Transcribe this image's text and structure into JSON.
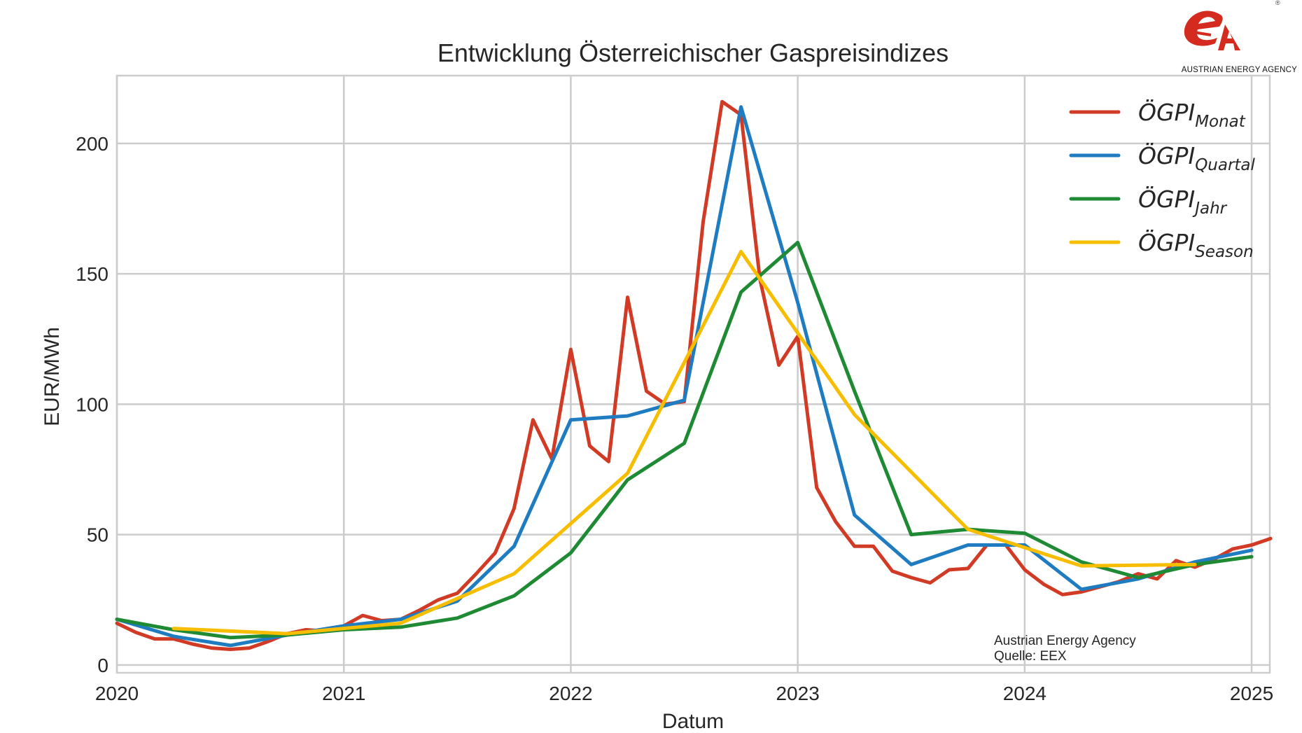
{
  "chart_data": {
    "type": "line",
    "title": "Entwicklung Österreichischer Gaspreisindizes",
    "xlabel": "Datum",
    "ylabel": "EUR/MWh",
    "xlim": [
      2020.0,
      2025.08
    ],
    "ylim": [
      -3,
      226
    ],
    "x_ticks": [
      2020,
      2021,
      2022,
      2023,
      2024,
      2025
    ],
    "x_tick_labels": [
      "2020",
      "2021",
      "2022",
      "2023",
      "2024",
      "2025"
    ],
    "y_ticks": [
      0,
      50,
      100,
      150,
      200
    ],
    "y_tick_labels": [
      "0",
      "50",
      "100",
      "150",
      "200"
    ],
    "grid": true,
    "legend_position": "top-right",
    "series": [
      {
        "name_main": "ÖGPI",
        "name_sub": "Monat",
        "color": "#d13b26",
        "x": [
          "2020-01",
          "2020-02",
          "2020-03",
          "2020-04",
          "2020-05",
          "2020-06",
          "2020-07",
          "2020-08",
          "2020-09",
          "2020-10",
          "2020-11",
          "2020-12",
          "2021-01",
          "2021-02",
          "2021-03",
          "2021-04",
          "2021-05",
          "2021-06",
          "2021-07",
          "2021-08",
          "2021-09",
          "2021-10",
          "2021-11",
          "2021-12",
          "2022-01",
          "2022-02",
          "2022-03",
          "2022-04",
          "2022-05",
          "2022-06",
          "2022-07",
          "2022-08",
          "2022-09",
          "2022-10",
          "2022-11",
          "2022-12",
          "2023-01",
          "2023-02",
          "2023-03",
          "2023-04",
          "2023-05",
          "2023-06",
          "2023-07",
          "2023-08",
          "2023-09",
          "2023-10",
          "2023-11",
          "2023-12",
          "2024-01",
          "2024-02",
          "2024-03",
          "2024-04",
          "2024-05",
          "2024-06",
          "2024-07",
          "2024-08",
          "2024-09",
          "2024-10",
          "2024-11",
          "2024-12",
          "2025-01",
          "2025-02"
        ],
        "y": [
          16,
          12.5,
          10,
          10,
          8,
          6.5,
          6,
          6.5,
          9,
          12,
          13.5,
          13,
          15,
          19,
          17,
          17.5,
          21,
          25,
          27.5,
          35,
          43,
          60,
          94,
          79,
          121,
          84,
          78,
          141,
          105,
          100,
          101,
          170,
          216,
          211,
          148,
          115,
          126,
          68,
          55,
          45.5,
          45.5,
          36,
          33.5,
          31.5,
          36.5,
          37,
          46,
          46,
          36.5,
          31,
          27,
          28,
          30,
          32,
          35,
          33,
          40,
          37.5,
          40.5,
          44.5,
          46,
          48.5
        ]
      },
      {
        "name_main": "ÖGPI",
        "name_sub": "Quartal",
        "color": "#1f7cc1",
        "x": [
          "2020-01",
          "2020-04",
          "2020-07",
          "2020-10",
          "2021-01",
          "2021-04",
          "2021-07",
          "2021-10",
          "2022-01",
          "2022-04",
          "2022-07",
          "2022-10",
          "2023-01",
          "2023-04",
          "2023-07",
          "2023-10",
          "2024-01",
          "2024-04",
          "2024-07",
          "2024-10",
          "2025-01"
        ],
        "y": [
          17.5,
          11,
          7.5,
          11.5,
          15,
          17.5,
          24.5,
          45.5,
          94,
          95.5,
          101.5,
          214,
          139,
          57.5,
          38.5,
          46,
          46,
          29,
          33,
          39.5,
          44
        ]
      },
      {
        "name_main": "ÖGPI",
        "name_sub": "Jahr",
        "color": "#1f8a34",
        "x": [
          "2020-01",
          "2020-04",
          "2020-07",
          "2020-10",
          "2021-01",
          "2021-04",
          "2021-07",
          "2021-10",
          "2022-01",
          "2022-04",
          "2022-07",
          "2022-10",
          "2023-01",
          "2023-04",
          "2023-07",
          "2023-10",
          "2024-01",
          "2024-04",
          "2024-07",
          "2024-10",
          "2025-01"
        ],
        "y": [
          17.5,
          13.5,
          10.5,
          11.5,
          13.5,
          14.5,
          18,
          26.5,
          43,
          71,
          85,
          143,
          162,
          105,
          50,
          52,
          50.5,
          39.5,
          33.5,
          38.5,
          41.5
        ]
      },
      {
        "name_main": "ÖGPI",
        "name_sub": "Season",
        "color": "#f7bd00",
        "x": [
          "2020-04",
          "2020-10",
          "2021-04",
          "2021-10",
          "2022-04",
          "2022-10",
          "2023-04",
          "2023-10",
          "2024-04",
          "2024-10"
        ],
        "y": [
          14,
          12,
          16,
          35,
          73.5,
          158.5,
          96,
          52,
          38,
          38.5
        ]
      }
    ],
    "annotations": [
      "Austrian Energy Agency",
      "Quelle: EEX"
    ]
  },
  "logo": {
    "text": "AUSTRIAN ENERGY AGENCY",
    "mark": "eA",
    "registered": "®",
    "color": "#d42b1e"
  }
}
